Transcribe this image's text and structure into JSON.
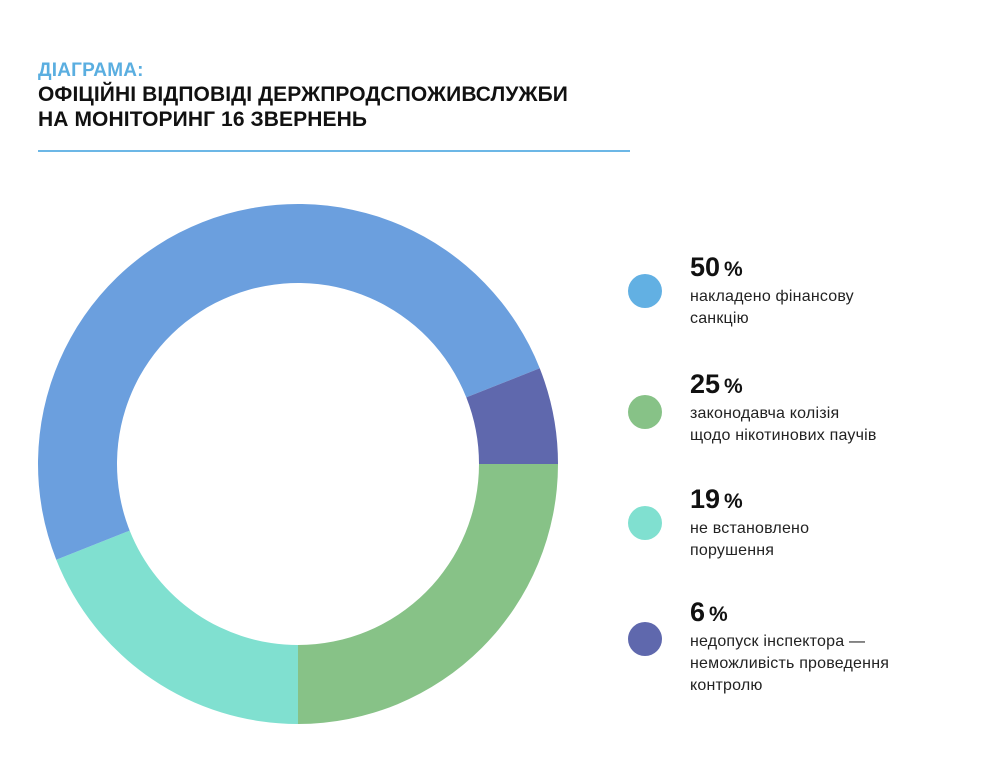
{
  "header": {
    "kicker": "ДІАГРАМА:",
    "title_line1": "ОФІЦІЙНІ ВІДПОВІДІ ДЕРЖПРОДСПОЖИВСЛУЖБИ",
    "title_line2": "НА МОНІТОРИНГ 16 ЗВЕРНЕНЬ"
  },
  "colors": {
    "kicker": "#5aaee0",
    "rule": "#6cb7e6",
    "segment_1": "#6b9fde",
    "segment_2": "#87c287",
    "segment_3": "#80e0d0",
    "segment_4": "#5f68ad",
    "legend_dot_1": "#62b0e3"
  },
  "chart_data": {
    "type": "donut",
    "unit": "%",
    "slices": [
      {
        "value": 50,
        "pct_sign": "%",
        "label_lines": [
          "накладено фінансову",
          "санкцію"
        ]
      },
      {
        "value": 25,
        "pct_sign": "%",
        "label_lines": [
          "законодавча колізія",
          "щодо нікотинових паучів"
        ]
      },
      {
        "value": 19,
        "pct_sign": "%",
        "label_lines": [
          "не встановлено",
          "порушення"
        ]
      },
      {
        "value": 6,
        "pct_sign": "%",
        "label_lines": [
          "недопуск інспектора —",
          "неможливість проведення",
          "контролю"
        ]
      }
    ],
    "legend_position": "right"
  }
}
